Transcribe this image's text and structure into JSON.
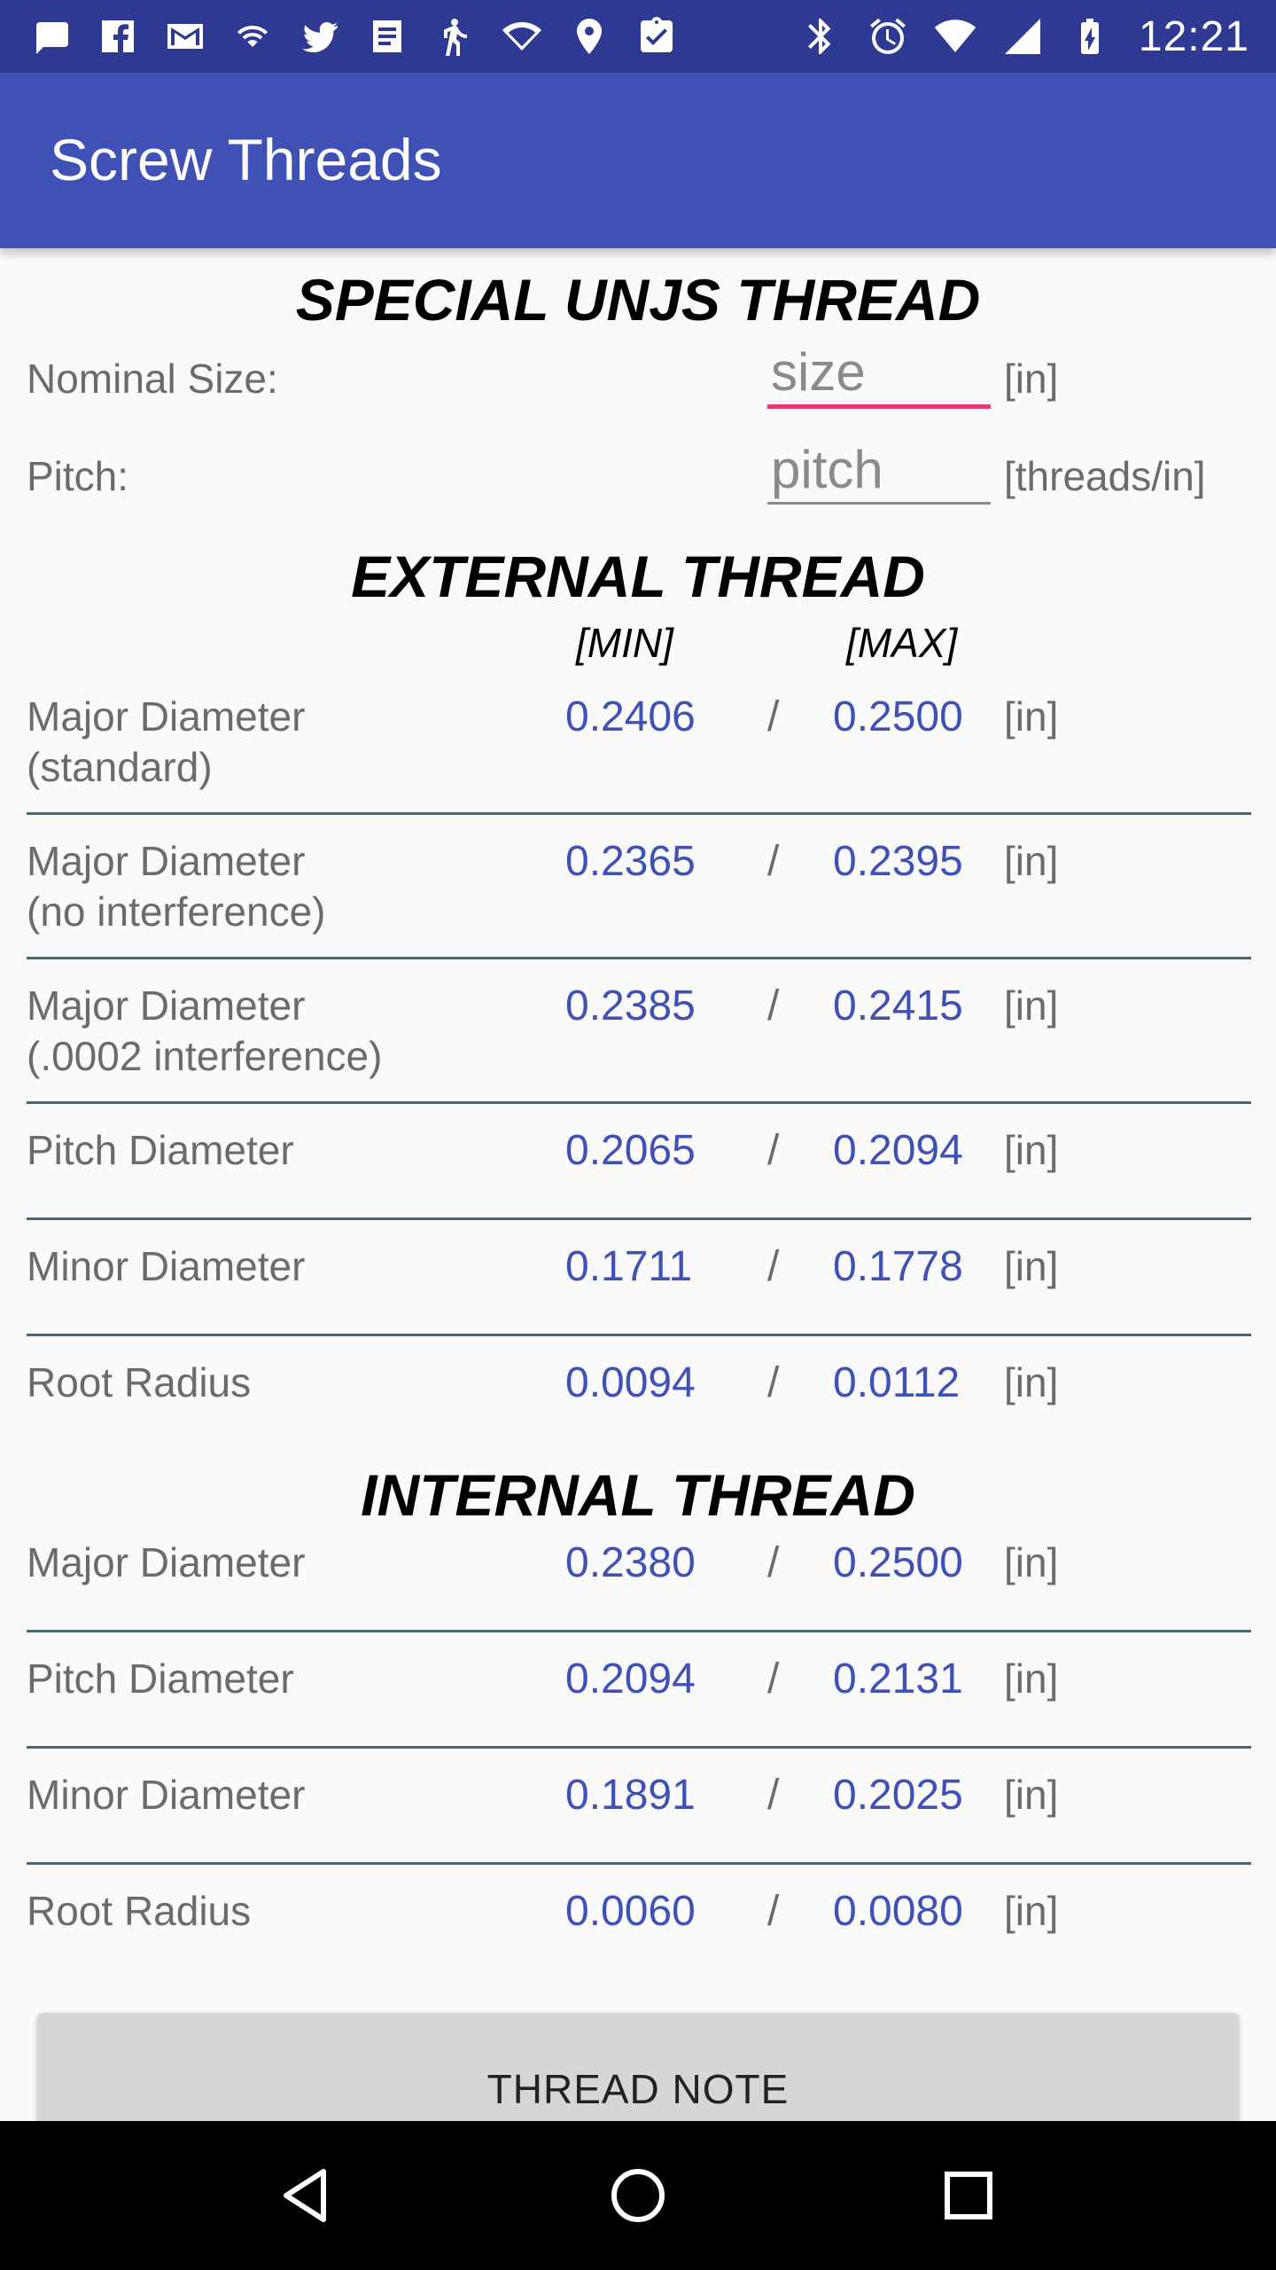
{
  "status_bar": {
    "time": "12:21",
    "left_icons": [
      "chat-icon",
      "facebook-icon",
      "gmail-icon",
      "wifi-hotspot-icon",
      "twitter-icon",
      "news-icon",
      "running-icon",
      "wifi-signal-icon",
      "location-icon",
      "clipboard-check-icon"
    ],
    "right_icons": [
      "bluetooth-icon",
      "alarm-icon",
      "wifi-icon",
      "cell-signal-icon",
      "battery-charging-icon"
    ]
  },
  "app_bar": {
    "title": "Screw Threads"
  },
  "main": {
    "title": "SPECIAL UNJS THREAD",
    "nominal_size": {
      "label": "Nominal Size:",
      "placeholder": "size",
      "unit": "[in]"
    },
    "pitch": {
      "label": "Pitch:",
      "placeholder": "pitch",
      "unit": "[threads/in]"
    },
    "external": {
      "heading": "EXTERNAL THREAD",
      "col_min": "[MIN]",
      "col_max": "[MAX]",
      "rows": [
        {
          "label1": "Major Diameter",
          "label2": "(standard)",
          "min": "0.2406",
          "max": "0.2500",
          "unit": "[in]"
        },
        {
          "label1": "Major Diameter",
          "label2": "(no interference)",
          "min": "0.2365",
          "max": "0.2395",
          "unit": "[in]"
        },
        {
          "label1": "Major Diameter",
          "label2": "(.0002 interference)",
          "min": "0.2385",
          "max": "0.2415",
          "unit": "[in]"
        },
        {
          "label1": "Pitch Diameter",
          "min": "0.2065",
          "max": "0.2094",
          "unit": "[in]"
        },
        {
          "label1": "Minor Diameter",
          "min": "0.1711",
          "max": "0.1778",
          "unit": "[in]"
        },
        {
          "label1": "Root Radius",
          "min": "0.0094",
          "max": "0.0112",
          "unit": "[in]"
        }
      ]
    },
    "internal": {
      "heading": "INTERNAL THREAD",
      "rows": [
        {
          "label1": "Major Diameter",
          "min": "0.2380",
          "max": "0.2500",
          "unit": "[in]"
        },
        {
          "label1": "Pitch Diameter",
          "min": "0.2094",
          "max": "0.2131",
          "unit": "[in]"
        },
        {
          "label1": "Minor Diameter",
          "min": "0.1891",
          "max": "0.2025",
          "unit": "[in]"
        },
        {
          "label1": "Root Radius",
          "min": "0.0060",
          "max": "0.0080",
          "unit": "[in]"
        }
      ]
    },
    "separator": "/",
    "button": "THREAD NOTE"
  },
  "nav_bar": {
    "buttons": [
      "back-icon",
      "home-icon",
      "recents-icon"
    ]
  },
  "colors": {
    "primary": "#3f51b5",
    "primary_dark": "#2e3a91",
    "accent": "#e63a77",
    "value_text": "#3f51b5"
  }
}
